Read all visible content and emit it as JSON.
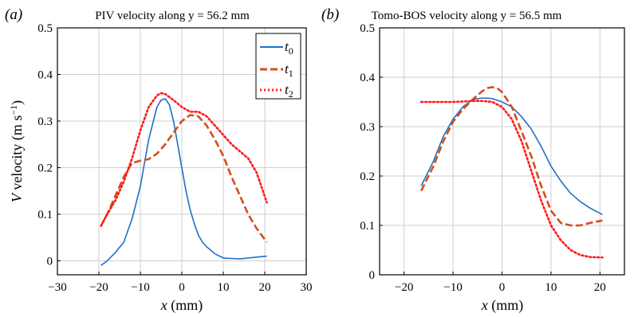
{
  "panels": [
    {
      "label": "(a)",
      "title": "PIV velocity along y = 56.2 mm"
    },
    {
      "label": "(b)",
      "title": "Tomo-BOS velocity along y = 56.5 mm"
    }
  ],
  "legend_labels": [
    "t0",
    "t1",
    "t2"
  ],
  "legend_subscripts": [
    "0",
    "1",
    "2"
  ],
  "chart_data": [
    {
      "type": "line",
      "title": "PIV velocity along y = 56.2 mm",
      "xlabel": "x (mm)",
      "ylabel": "V velocity (m s−1)",
      "xlim": [
        -30,
        30
      ],
      "ylim": [
        -0.03,
        0.5
      ],
      "xticks": [
        -30,
        -20,
        -10,
        0,
        10,
        20,
        30
      ],
      "yticks": [
        0,
        0.1,
        0.2,
        0.3,
        0.4,
        0.5
      ],
      "grid": true,
      "legend": "top-right",
      "series": [
        {
          "name": "t0",
          "color": "#1f6fc6",
          "style": "solid",
          "x": [
            -19.5,
            -18,
            -16,
            -14,
            -12,
            -10,
            -8,
            -6,
            -5,
            -4,
            -3,
            -2,
            -1,
            0,
            1,
            2,
            3,
            4,
            5,
            6,
            8,
            10,
            12,
            14,
            16,
            18,
            20.5
          ],
          "y": [
            -0.01,
            0.0,
            0.018,
            0.04,
            0.09,
            0.16,
            0.26,
            0.33,
            0.345,
            0.348,
            0.335,
            0.3,
            0.25,
            0.2,
            0.15,
            0.11,
            0.08,
            0.055,
            0.04,
            0.03,
            0.015,
            0.006,
            0.005,
            0.004,
            0.006,
            0.008,
            0.01
          ]
        },
        {
          "name": "t1",
          "color": "#d1501a",
          "style": "dashed",
          "x": [
            -19.5,
            -18,
            -16,
            -14,
            -12,
            -10,
            -8,
            -6,
            -4,
            -2,
            0,
            2,
            4,
            6,
            8,
            10,
            12,
            14,
            16,
            18,
            20.5
          ],
          "y": [
            0.075,
            0.1,
            0.14,
            0.18,
            0.21,
            0.215,
            0.218,
            0.23,
            0.25,
            0.275,
            0.3,
            0.313,
            0.31,
            0.29,
            0.26,
            0.225,
            0.18,
            0.14,
            0.1,
            0.07,
            0.04
          ]
        },
        {
          "name": "t2",
          "color": "#ff1a1a",
          "style": "dotted",
          "x": [
            -19.5,
            -18,
            -16,
            -14,
            -12,
            -10,
            -8,
            -6,
            -5,
            -4,
            -2,
            0,
            2,
            4,
            6,
            8,
            10,
            12,
            14,
            16,
            18,
            20.5
          ],
          "y": [
            0.075,
            0.1,
            0.13,
            0.17,
            0.22,
            0.28,
            0.33,
            0.355,
            0.36,
            0.358,
            0.345,
            0.33,
            0.32,
            0.32,
            0.31,
            0.29,
            0.27,
            0.25,
            0.235,
            0.22,
            0.19,
            0.125
          ]
        }
      ]
    },
    {
      "type": "line",
      "title": "Tomo-BOS velocity along y = 56.5 mm",
      "xlabel": "x (mm)",
      "ylabel": "",
      "xlim": [
        -25,
        25
      ],
      "ylim": [
        0,
        0.5
      ],
      "xticks": [
        -20,
        -10,
        0,
        10,
        20
      ],
      "yticks": [
        0,
        0.1,
        0.2,
        0.3,
        0.4,
        0.5
      ],
      "grid": true,
      "series": [
        {
          "name": "t0",
          "color": "#1f6fc6",
          "style": "solid",
          "x": [
            -16.5,
            -14,
            -12,
            -10,
            -8,
            -6,
            -4,
            -2,
            0,
            2,
            4,
            6,
            8,
            10,
            12,
            14,
            16,
            18,
            20.5
          ],
          "y": [
            0.18,
            0.23,
            0.28,
            0.315,
            0.34,
            0.355,
            0.358,
            0.357,
            0.35,
            0.34,
            0.32,
            0.295,
            0.26,
            0.22,
            0.19,
            0.165,
            0.148,
            0.135,
            0.122
          ]
        },
        {
          "name": "t1",
          "color": "#d1501a",
          "style": "dashed",
          "x": [
            -16.5,
            -14,
            -12,
            -10,
            -8,
            -6,
            -4,
            -3,
            -2,
            -1,
            0,
            2,
            4,
            6,
            8,
            10,
            12,
            14,
            16,
            18,
            20.5
          ],
          "y": [
            0.17,
            0.22,
            0.27,
            0.31,
            0.335,
            0.355,
            0.372,
            0.378,
            0.38,
            0.378,
            0.37,
            0.34,
            0.29,
            0.24,
            0.18,
            0.13,
            0.105,
            0.1,
            0.1,
            0.105,
            0.11
          ]
        },
        {
          "name": "t2",
          "color": "#ff1a1a",
          "style": "dotted",
          "x": [
            -16.5,
            -14,
            -12,
            -10,
            -8,
            -6,
            -4,
            -2,
            0,
            2,
            4,
            6,
            8,
            10,
            12,
            14,
            16,
            18,
            20.5
          ],
          "y": [
            0.35,
            0.35,
            0.35,
            0.35,
            0.351,
            0.352,
            0.352,
            0.35,
            0.34,
            0.315,
            0.27,
            0.21,
            0.15,
            0.1,
            0.07,
            0.05,
            0.04,
            0.036,
            0.035
          ]
        }
      ]
    }
  ]
}
